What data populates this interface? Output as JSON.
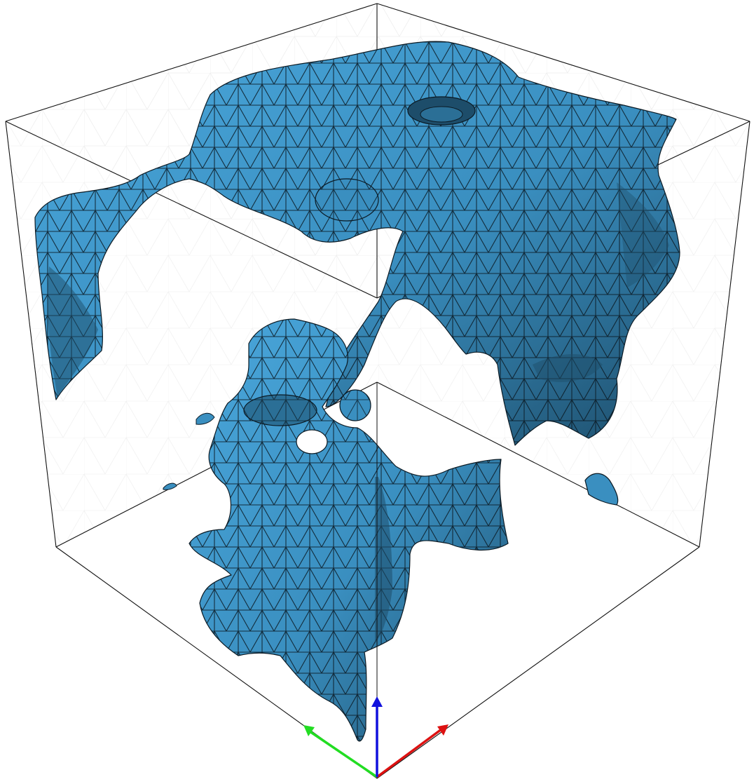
{
  "viewer": {
    "background": "#ffffff",
    "surface_color": "#3a8fc0",
    "surface_dark": "#1d4d6a",
    "surface_light": "#4aa7dc",
    "mesh_edge_color": "#0b1a24",
    "bounding_box_color": "#111111"
  },
  "axes": {
    "x": {
      "color": "#dd1111",
      "icon": "x-axis-arrow"
    },
    "y": {
      "color": "#22dd22",
      "icon": "y-axis-arrow"
    },
    "z": {
      "color": "#1111dd",
      "icon": "z-axis-arrow"
    }
  }
}
